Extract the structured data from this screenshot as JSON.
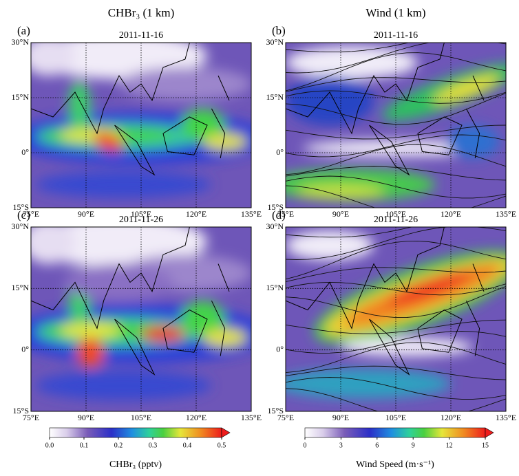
{
  "columns": [
    "CHBr₃ (1 km)",
    "Wind (1 km)"
  ],
  "panels": [
    {
      "label": "(a)",
      "date": "2011-11-16"
    },
    {
      "label": "(b)",
      "date": "2011-11-16"
    },
    {
      "label": "(c)",
      "date": "2011-11-26"
    },
    {
      "label": "(d)",
      "date": "2011-11-26"
    }
  ],
  "lat_ticks": [
    "30°N",
    "15°N",
    "0°",
    "15°S"
  ],
  "lon_ticks": [
    "75°E",
    "90°E",
    "105°E",
    "120°E",
    "135°E"
  ],
  "colorbars": [
    {
      "ticks": [
        "0.0",
        "0.1",
        "0.2",
        "0.3",
        "0.4",
        "0.5"
      ],
      "title": "CHBr₃ (pptv)"
    },
    {
      "ticks": [
        "0",
        "3",
        "6",
        "9",
        "12",
        "15"
      ],
      "title": "Wind Speed (m·s⁻¹)"
    }
  ]
}
